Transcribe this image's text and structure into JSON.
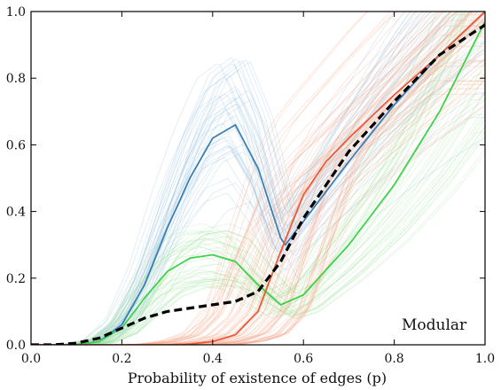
{
  "chart_data": {
    "type": "line",
    "title": "",
    "xlabel": "Probability of existence of edges (p)",
    "ylabel": "",
    "xlim": [
      0.0,
      1.0
    ],
    "ylim": [
      0.0,
      1.0
    ],
    "x_ticks": [
      "0.0",
      "0.2",
      "0.4",
      "0.6",
      "0.8",
      "1.0"
    ],
    "y_ticks": [
      "0.0",
      "0.2",
      "0.4",
      "0.6",
      "0.8",
      "1.0"
    ],
    "x_tick_values": [
      0.0,
      0.2,
      0.4,
      0.6,
      0.8,
      1.0
    ],
    "y_tick_values": [
      0.0,
      0.2,
      0.4,
      0.6,
      0.8,
      1.0
    ],
    "annotation": "Modular",
    "grid": false,
    "colors": {
      "blue": "#3a7fb5",
      "green": "#3ed24a",
      "orange": "#ee5a38",
      "dashed": "#000000",
      "blue_faint": "#9cc4e0",
      "green_faint": "#a6e6a4",
      "orange_faint": "#f7a98c"
    },
    "series": [
      {
        "color_key": "blue",
        "style": "solid",
        "x": [
          0.0,
          0.1,
          0.15,
          0.2,
          0.25,
          0.3,
          0.35,
          0.4,
          0.45,
          0.5,
          0.55,
          0.56,
          0.6,
          0.7,
          0.8,
          0.9,
          1.0
        ],
        "y": [
          0.0,
          0.0,
          0.01,
          0.06,
          0.18,
          0.35,
          0.5,
          0.62,
          0.66,
          0.53,
          0.32,
          0.3,
          0.37,
          0.55,
          0.72,
          0.87,
          1.0
        ]
      },
      {
        "color_key": "green",
        "style": "solid",
        "x": [
          0.0,
          0.1,
          0.15,
          0.2,
          0.25,
          0.3,
          0.35,
          0.4,
          0.45,
          0.5,
          0.55,
          0.6,
          0.7,
          0.8,
          0.9,
          1.0
        ],
        "y": [
          0.0,
          0.0,
          0.01,
          0.05,
          0.14,
          0.22,
          0.26,
          0.27,
          0.25,
          0.18,
          0.12,
          0.15,
          0.3,
          0.48,
          0.7,
          0.97
        ]
      },
      {
        "color_key": "orange",
        "style": "solid",
        "x": [
          0.0,
          0.3,
          0.35,
          0.4,
          0.45,
          0.5,
          0.55,
          0.6,
          0.65,
          0.7,
          0.8,
          0.9,
          1.0
        ],
        "y": [
          0.0,
          0.0,
          0.002,
          0.01,
          0.03,
          0.1,
          0.28,
          0.45,
          0.55,
          0.62,
          0.75,
          0.87,
          1.0
        ]
      },
      {
        "color_key": "dashed",
        "style": "dashed",
        "x": [
          0.0,
          0.05,
          0.1,
          0.15,
          0.2,
          0.25,
          0.3,
          0.35,
          0.4,
          0.45,
          0.5,
          0.55,
          0.6,
          0.65,
          0.7,
          0.8,
          0.9,
          1.0
        ],
        "y": [
          0.0,
          0.0,
          0.005,
          0.02,
          0.05,
          0.08,
          0.1,
          0.11,
          0.12,
          0.13,
          0.16,
          0.25,
          0.38,
          0.48,
          0.58,
          0.73,
          0.87,
          0.96
        ]
      }
    ]
  }
}
